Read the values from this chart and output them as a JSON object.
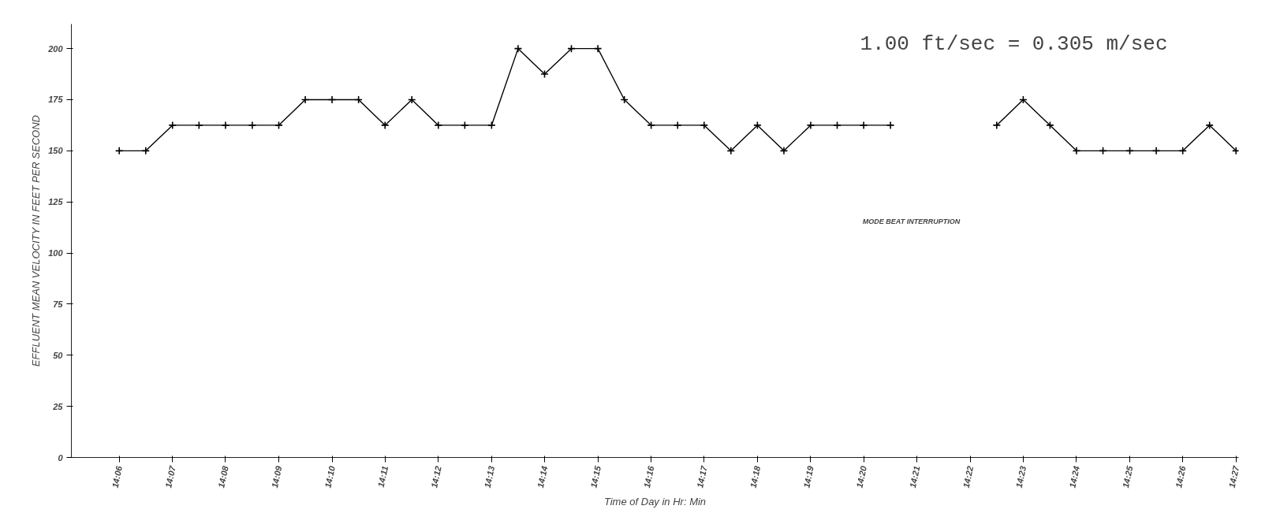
{
  "chart_data": {
    "type": "line",
    "xlabel": "Time of Day in Hr: Min",
    "ylabel": "EFFLUENT MEAN VELOCITY IN FEET PER SECOND",
    "annotations": [
      "1.00 ft/sec = 0.305 m/sec",
      "MODE BEAT INTERRUPTION"
    ],
    "x": [
      14.1,
      14.1083,
      14.1167,
      14.125,
      14.1333,
      14.1417,
      14.15,
      14.1583,
      14.1667,
      14.175,
      14.1833,
      14.1917,
      14.2,
      14.2083,
      14.2167,
      14.225,
      14.2333,
      14.2417,
      14.25,
      14.2583,
      14.2667,
      14.275,
      14.2833,
      14.2917,
      14.3,
      14.3083,
      14.3167,
      14.325,
      14.3333,
      14.3417,
      14.35,
      14.3583,
      14.3667,
      14.375,
      14.3833,
      14.3917,
      14.4,
      14.4083,
      14.4167,
      14.425,
      14.4333,
      14.4417,
      14.45
    ],
    "series": [
      {
        "color": "#000000",
        "values": [
          150,
          150,
          162.5,
          162.5,
          162.5,
          162.5,
          162.5,
          175,
          175,
          175,
          162.5,
          175,
          162.5,
          162.5,
          162.5,
          200,
          187.5,
          200,
          200,
          175,
          162.5,
          162.5,
          162.5,
          150,
          162.5,
          150,
          162.5,
          162.5,
          162.5,
          162.5,
          null,
          null,
          null,
          162.5,
          175,
          162.5,
          150,
          150,
          150,
          150,
          150,
          162.5,
          150
        ]
      }
    ],
    "xlim": [
      14.085,
      14.4508
    ],
    "ylim": [
      0,
      212
    ],
    "xticks": [
      {
        "value": 14.1,
        "label": "14:06"
      },
      {
        "value": 14.1167,
        "label": "14:07"
      },
      {
        "value": 14.1333,
        "label": "14:08"
      },
      {
        "value": 14.15,
        "label": "14:09"
      },
      {
        "value": 14.1667,
        "label": "14:10"
      },
      {
        "value": 14.1833,
        "label": "14:11"
      },
      {
        "value": 14.2,
        "label": "14:12"
      },
      {
        "value": 14.2167,
        "label": "14:13"
      },
      {
        "value": 14.2333,
        "label": "14:14"
      },
      {
        "value": 14.25,
        "label": "14:15"
      },
      {
        "value": 14.2667,
        "label": "14:16"
      },
      {
        "value": 14.2833,
        "label": "14:17"
      },
      {
        "value": 14.3,
        "label": "14:18"
      },
      {
        "value": 14.3167,
        "label": "14:19"
      },
      {
        "value": 14.3333,
        "label": "14:20"
      },
      {
        "value": 14.35,
        "label": "14:21"
      },
      {
        "value": 14.3667,
        "label": "14:22"
      },
      {
        "value": 14.3833,
        "label": "14:23"
      },
      {
        "value": 14.4,
        "label": "14:24"
      },
      {
        "value": 14.4167,
        "label": "14:25"
      },
      {
        "value": 14.4333,
        "label": "14:26"
      },
      {
        "value": 14.45,
        "label": "14:27"
      }
    ],
    "yticks": [
      0,
      25,
      50,
      75,
      100,
      125,
      150,
      175,
      200
    ],
    "grid": false,
    "marker": "cross",
    "line_style": "solid"
  }
}
